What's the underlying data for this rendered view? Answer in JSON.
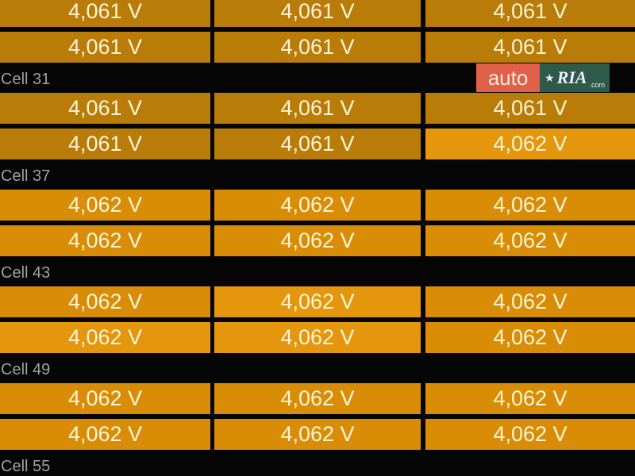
{
  "colors": {
    "v4061": "#b97c08",
    "v4062": "#d98d07",
    "v4062_bright": "#e4960d",
    "label": "#a0a0a0",
    "text": "#fff5d6"
  },
  "groups": [
    {
      "label": null,
      "rows": [
        [
          "4,061 V",
          "4,061 V",
          "4,061 V"
        ],
        [
          "4,061 V",
          "4,061 V",
          "4,061 V"
        ]
      ],
      "tones": [
        [
          "a",
          "a",
          "a"
        ],
        [
          "a",
          "a",
          "a"
        ]
      ]
    },
    {
      "label": "Cell 31",
      "rows": [
        [
          "4,061 V",
          "4,061 V",
          "4,061 V"
        ],
        [
          "4,061 V",
          "4,061 V",
          "4,062 V"
        ]
      ],
      "tones": [
        [
          "a",
          "a",
          "a"
        ],
        [
          "a",
          "a",
          "c"
        ]
      ]
    },
    {
      "label": "Cell 37",
      "rows": [
        [
          "4,062 V",
          "4,062 V",
          "4,062 V"
        ],
        [
          "4,062 V",
          "4,062 V",
          "4,062 V"
        ]
      ],
      "tones": [
        [
          "b",
          "b",
          "b"
        ],
        [
          "b",
          "b",
          "b"
        ]
      ]
    },
    {
      "label": "Cell 43",
      "rows": [
        [
          "4,062 V",
          "4,062 V",
          "4,062 V"
        ],
        [
          "4,062 V",
          "4,062 V",
          "4,062 V"
        ]
      ],
      "tones": [
        [
          "b",
          "c",
          "b"
        ],
        [
          "c",
          "c",
          "b"
        ]
      ]
    },
    {
      "label": "Cell 49",
      "rows": [
        [
          "4,062 V",
          "4,062 V",
          "4,062 V"
        ],
        [
          "4,062 V",
          "4,062 V",
          "4,062 V"
        ]
      ],
      "tones": [
        [
          "b",
          "b",
          "b"
        ],
        [
          "b",
          "b",
          "b"
        ]
      ]
    },
    {
      "label": "Cell 55",
      "rows": [],
      "tones": []
    }
  ],
  "watermark": {
    "left": "auto",
    "right": "RIA",
    "sub": ".com"
  }
}
